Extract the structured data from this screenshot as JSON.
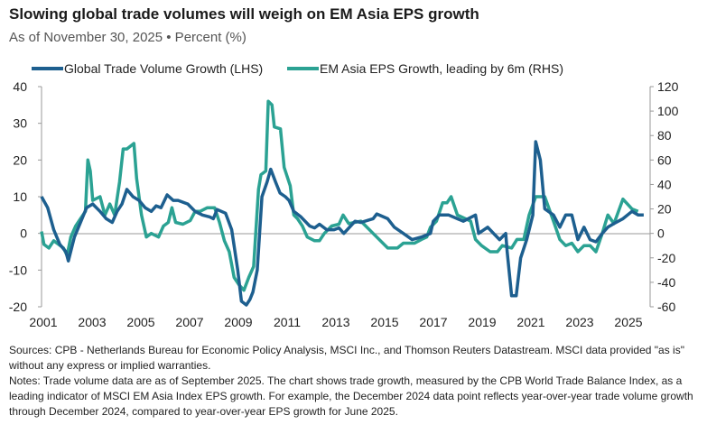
{
  "title": "Slowing global trade volumes will weigh on EM Asia EPS growth",
  "subtitle": "As of November 30, 2025 • Percent (%)",
  "notes": {
    "sources": "Sources: CPB - Netherlands Bureau for Economic Policy Analysis, MSCI Inc., and Thomson Reuters Datastream. MSCI data provided \"as is\" without any express or implied warranties.",
    "notes": "Notes: Trade volume data are as of September 2025. The chart shows trade growth, measured by the CPB World Trade Balance Index, as a leading indicator of MSCI EM Asia Index EPS growth. For example, the December 2024 data point reflects year-over-year trade volume growth through December 2024, compared to year-over-year EPS growth for June 2025."
  },
  "chart_data": {
    "type": "line",
    "title": "Slowing global trade volumes will weigh on EM Asia EPS growth",
    "legend_position": "top",
    "grid": false,
    "x_ticks": [
      "2001",
      "2003",
      "2005",
      "2007",
      "2009",
      "2011",
      "2013",
      "2015",
      "2017",
      "2019",
      "2021",
      "2023",
      "2025"
    ],
    "y_left": {
      "range": [
        -20,
        40
      ],
      "ticks": [
        "-20",
        "-10",
        "0",
        "10",
        "20",
        "30",
        "40"
      ]
    },
    "y_right": {
      "range": [
        -60,
        120
      ],
      "ticks": [
        "-60",
        "-40",
        "-20",
        "0",
        "20",
        "40",
        "60",
        "80",
        "100",
        "120"
      ]
    },
    "series": [
      {
        "name": "Global Trade Volume Growth (LHS)",
        "axis": "left",
        "color": "#1d5f8f",
        "x": [
          2001.0,
          2001.25,
          2001.5,
          2001.75,
          2002.0,
          2002.1,
          2002.35,
          2002.6,
          2002.85,
          2003.1,
          2003.4,
          2003.65,
          2003.9,
          2004.1,
          2004.3,
          2004.5,
          2004.75,
          2005.0,
          2005.25,
          2005.5,
          2005.7,
          2005.9,
          2006.15,
          2006.4,
          2006.6,
          2006.8,
          2007.0,
          2007.3,
          2007.6,
          2007.9,
          2008.05,
          2008.2,
          2008.55,
          2008.8,
          2009.05,
          2009.2,
          2009.4,
          2009.55,
          2009.67,
          2009.85,
          2010.04,
          2010.25,
          2010.4,
          2010.6,
          2010.78,
          2011.0,
          2011.15,
          2011.35,
          2011.64,
          2012.0,
          2012.2,
          2012.4,
          2012.7,
          2013.0,
          2013.2,
          2013.4,
          2013.86,
          2014.1,
          2014.6,
          2014.75,
          2015.2,
          2015.47,
          2015.84,
          2016.2,
          2016.58,
          2016.95,
          2017.07,
          2017.32,
          2017.7,
          2018.3,
          2018.8,
          2018.93,
          2019.3,
          2019.54,
          2019.79,
          2020.04,
          2020.1,
          2020.28,
          2020.47,
          2020.65,
          2020.9,
          2021.15,
          2021.27,
          2021.46,
          2021.64,
          2022.0,
          2022.26,
          2022.5,
          2022.75,
          2023.0,
          2023.25,
          2023.5,
          2023.74,
          2024.0,
          2024.23,
          2024.48,
          2024.85,
          2025.22,
          2025.47,
          2025.7
        ],
        "values": [
          10,
          7,
          1,
          -3,
          -5,
          -7.5,
          -1,
          3,
          7,
          8,
          6,
          4,
          3,
          6,
          8,
          12,
          10,
          9,
          7,
          6,
          7.5,
          7,
          10.5,
          9,
          9,
          8.5,
          8,
          6,
          5,
          4.5,
          4,
          6.5,
          5.5,
          1,
          -10,
          -18.5,
          -19.5,
          -18,
          -16,
          -10,
          10,
          14,
          17.5,
          14,
          11,
          10,
          9,
          6,
          4.5,
          2,
          1.5,
          2.5,
          1,
          1,
          1.5,
          0,
          3.3,
          3,
          4,
          5.3,
          4,
          1.7,
          0,
          -1.7,
          -1,
          0,
          3.3,
          5,
          5,
          3.3,
          5,
          0,
          1.7,
          0,
          -1.7,
          0,
          -5,
          -17,
          -17,
          -6.7,
          -1.7,
          5,
          25,
          20,
          6.7,
          5,
          1.7,
          5,
          5,
          -1.7,
          1.7,
          -1.7,
          -2.3,
          0,
          1.7,
          2.7,
          4,
          6,
          5,
          5
        ]
      },
      {
        "name": "EM Asia EPS Growth, leading by 6m (RHS)",
        "axis": "right",
        "color": "#2ba293",
        "x": [
          2001.0,
          2001.1,
          2001.3,
          2001.5,
          2001.7,
          2001.9,
          2002.05,
          2002.2,
          2002.4,
          2002.6,
          2002.8,
          2002.9,
          2003.0,
          2003.1,
          2003.4,
          2003.6,
          2003.8,
          2004.0,
          2004.2,
          2004.35,
          2004.5,
          2004.79,
          2004.9,
          2005.1,
          2005.3,
          2005.5,
          2005.8,
          2006.0,
          2006.2,
          2006.35,
          2006.5,
          2006.8,
          2007.1,
          2007.3,
          2007.5,
          2007.8,
          2008.1,
          2008.3,
          2008.5,
          2008.7,
          2008.9,
          2009.1,
          2009.3,
          2009.5,
          2009.7,
          2009.9,
          2010.0,
          2010.2,
          2010.3,
          2010.45,
          2010.55,
          2010.8,
          2010.95,
          2011.2,
          2011.35,
          2011.5,
          2011.7,
          2011.9,
          2012.2,
          2012.4,
          2012.6,
          2012.9,
          2013.2,
          2013.37,
          2013.6,
          2014.1,
          2014.6,
          2015.2,
          2015.6,
          2015.84,
          2016.3,
          2016.58,
          2016.8,
          2016.95,
          2017.2,
          2017.45,
          2017.63,
          2017.8,
          2018.06,
          2018.6,
          2018.8,
          2019.05,
          2019.4,
          2019.7,
          2019.9,
          2020.28,
          2020.5,
          2020.78,
          2021.0,
          2021.27,
          2021.64,
          2022.0,
          2022.26,
          2022.5,
          2022.75,
          2023.0,
          2023.25,
          2023.5,
          2023.74,
          2024.0,
          2024.23,
          2024.48,
          2024.85,
          2025.22,
          2025.47
        ],
        "values": [
          1.5,
          -9,
          -12,
          -6,
          -9,
          -12,
          -18,
          -3,
          6,
          12,
          18,
          60,
          51,
          27,
          30,
          15,
          24,
          15,
          42,
          69,
          69,
          73.5,
          45,
          15,
          -3,
          0,
          -3,
          6,
          9,
          21,
          9,
          7.5,
          10.5,
          18,
          18,
          21,
          21,
          9,
          -6,
          -15,
          -36,
          -42,
          -46.5,
          -36,
          -27,
          36,
          48,
          51,
          108,
          105,
          87,
          85.5,
          54,
          39,
          15,
          12,
          6,
          -3,
          -6,
          -6,
          0,
          6,
          7.5,
          15,
          8,
          10,
          0,
          -12,
          -12,
          -8,
          -8,
          -5,
          -3,
          5,
          10,
          25,
          25,
          30,
          15,
          10,
          -5,
          -10,
          -15,
          -15,
          -10,
          -12,
          -5,
          -5,
          15,
          30,
          30,
          10,
          -5,
          -10,
          -8,
          -15,
          -10,
          -10,
          -15,
          0,
          15,
          8,
          28,
          20,
          18
        ]
      }
    ]
  }
}
